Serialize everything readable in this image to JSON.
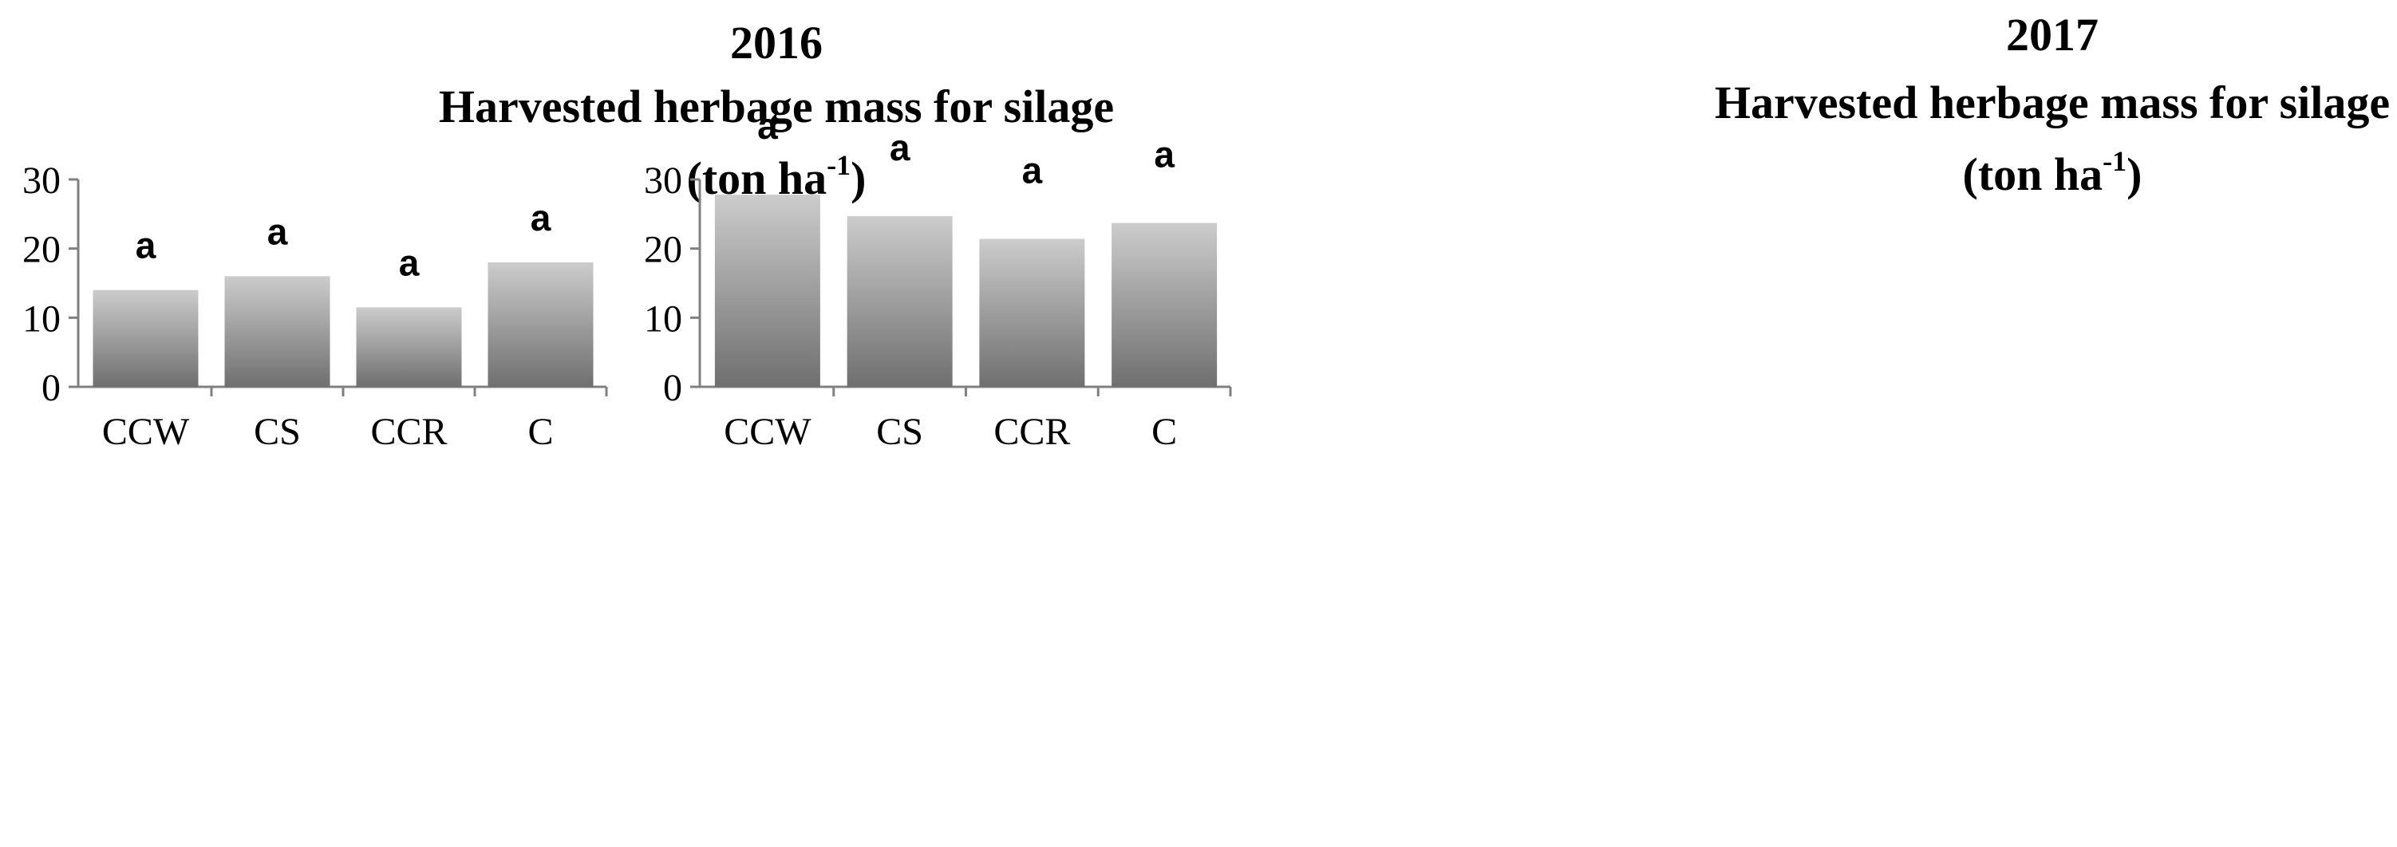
{
  "chart_data": [
    {
      "type": "bar",
      "title": "2016",
      "subtitle": "Harvested herbage mass for silage",
      "unit_base": "(ton ha",
      "unit_sup": "-1",
      "unit_close": ")",
      "categories": [
        "CCW",
        "CS",
        "CCR",
        "C"
      ],
      "values": [
        14,
        16,
        11.5,
        18
      ],
      "significance": [
        "a",
        "a",
        "a",
        "a"
      ],
      "ylim": [
        0,
        30
      ],
      "yticks": [
        "0",
        "10",
        "20",
        "30"
      ],
      "bar_color_top": "#cccccc",
      "bar_color_bottom": "#6f6f6f"
    },
    {
      "type": "bar",
      "title": "2017",
      "subtitle": "Harvested herbage mass for silage",
      "unit_base": "(ton ha",
      "unit_sup": "-1",
      "unit_close": ")",
      "categories": [
        "CCW",
        "CS",
        "CCR",
        "C"
      ],
      "values": [
        27.8,
        24.7,
        21.4,
        23.7
      ],
      "significance": [
        "a",
        "a",
        "a",
        "a"
      ],
      "ylim": [
        0,
        30
      ],
      "yticks": [
        "0",
        "10",
        "20",
        "30"
      ],
      "bar_color_top": "#cccccc",
      "bar_color_bottom": "#6f6f6f"
    }
  ]
}
